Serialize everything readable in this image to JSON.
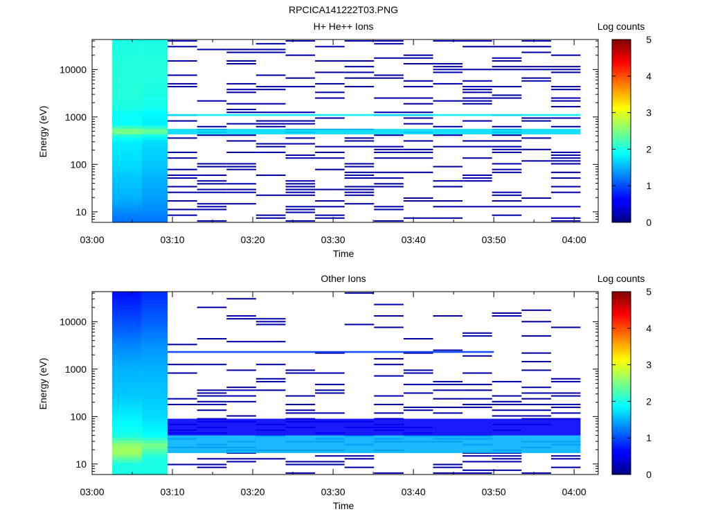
{
  "figure_title": "RPCICA141222T03.PNG",
  "panels": [
    {
      "title": "H+ He++ Ions",
      "ylabel": "Energy (eV)",
      "xlabel": "Time",
      "colorbar_label": "Log counts"
    },
    {
      "title": "Other Ions",
      "ylabel": "Energy (eV)",
      "xlabel": "Time",
      "colorbar_label": "Log counts"
    }
  ],
  "x_ticks": [
    "03:00",
    "03:10",
    "03:20",
    "03:30",
    "03:40",
    "03:50",
    "04:00"
  ],
  "y_ticks": [
    "10",
    "100",
    "1000",
    "10000"
  ],
  "colorbar_ticks": [
    "0",
    "1",
    "2",
    "3",
    "4",
    "5"
  ],
  "chart_data": [
    {
      "type": "heatmap",
      "title": "H+ He++ Ions",
      "xlabel": "Time",
      "ylabel": "Energy (eV)",
      "colorbar_label": "Log counts",
      "xlim": [
        "03:00",
        "04:03"
      ],
      "ylim": [
        6,
        43000
      ],
      "y_scale": "log",
      "zlim": [
        0,
        5
      ],
      "colormap": "jet",
      "columns": [
        {
          "t_start": "03:02.5",
          "t_end": "03:06.2",
          "energy_profile": [
            [
              7,
              1.2
            ],
            [
              10,
              1.3
            ],
            [
              20,
              1.5
            ],
            [
              50,
              1.6
            ],
            [
              100,
              1.7
            ],
            [
              300,
              1.8
            ],
            [
              400,
              2.0
            ],
            [
              500,
              2.6
            ],
            [
              700,
              1.9
            ],
            [
              1200,
              1.9
            ],
            [
              1500,
              2.0
            ],
            [
              3000,
              2.05
            ],
            [
              10000,
              2.05
            ],
            [
              40000,
              2.0
            ]
          ]
        },
        {
          "t_start": "03:06.2",
          "t_end": "03:09.4",
          "energy_profile": [
            [
              7,
              1.2
            ],
            [
              10,
              1.3
            ],
            [
              20,
              1.4
            ],
            [
              50,
              1.5
            ],
            [
              100,
              1.6
            ],
            [
              300,
              1.7
            ],
            [
              400,
              1.9
            ],
            [
              500,
              2.5
            ],
            [
              700,
              1.8
            ],
            [
              1200,
              1.85
            ],
            [
              1500,
              1.95
            ],
            [
              3000,
              2.0
            ],
            [
              10000,
              2.05
            ],
            [
              40000,
              2.0
            ]
          ]
        }
      ],
      "bands": [
        {
          "t_start": "03:09.4",
          "t_end": "04:00.8",
          "e_low": 430,
          "e_high": 560,
          "log_counts": 1.7
        },
        {
          "t_start": "03:09.4",
          "t_end": "04:00.8",
          "e_low": 1050,
          "e_high": 1150,
          "log_counts": 1.8
        }
      ],
      "sparse_level": 0.15
    },
    {
      "type": "heatmap",
      "title": "Other Ions",
      "xlabel": "Time",
      "ylabel": "Energy (eV)",
      "colorbar_label": "Log counts",
      "xlim": [
        "03:00",
        "04:03"
      ],
      "ylim": [
        6,
        43000
      ],
      "y_scale": "log",
      "zlim": [
        0,
        5
      ],
      "colormap": "jet",
      "columns": [
        {
          "t_start": "03:02.5",
          "t_end": "03:06.2",
          "energy_profile": [
            [
              7,
              2.0
            ],
            [
              10,
              2.0
            ],
            [
              18,
              2.7
            ],
            [
              25,
              2.6
            ],
            [
              40,
              2.0
            ],
            [
              100,
              1.8
            ],
            [
              300,
              1.6
            ],
            [
              1000,
              1.5
            ],
            [
              3000,
              1.3
            ],
            [
              10000,
              1.0
            ],
            [
              40000,
              0.7
            ]
          ]
        },
        {
          "t_start": "03:06.2",
          "t_end": "03:09.4",
          "energy_profile": [
            [
              7,
              2.0
            ],
            [
              10,
              2.0
            ],
            [
              14,
              2.0
            ],
            [
              25,
              2.5
            ],
            [
              40,
              1.9
            ],
            [
              100,
              1.7
            ],
            [
              300,
              1.6
            ],
            [
              1000,
              1.5
            ],
            [
              3000,
              1.35
            ],
            [
              10000,
              1.1
            ],
            [
              40000,
              0.85
            ]
          ]
        }
      ],
      "bands": [
        {
          "t_start": "03:09.4",
          "t_end": "04:00.8",
          "e_low": 17,
          "e_high": 40,
          "log_counts": 1.5
        },
        {
          "t_start": "03:09.4",
          "t_end": "04:00.8",
          "e_low": 40,
          "e_high": 90,
          "log_counts": 0.6
        },
        {
          "t_start": "03:09.4",
          "t_end": "03:50.0",
          "e_low": 2200,
          "e_high": 2400,
          "log_counts": 0.9
        }
      ],
      "sparse_level": 0.15
    }
  ]
}
